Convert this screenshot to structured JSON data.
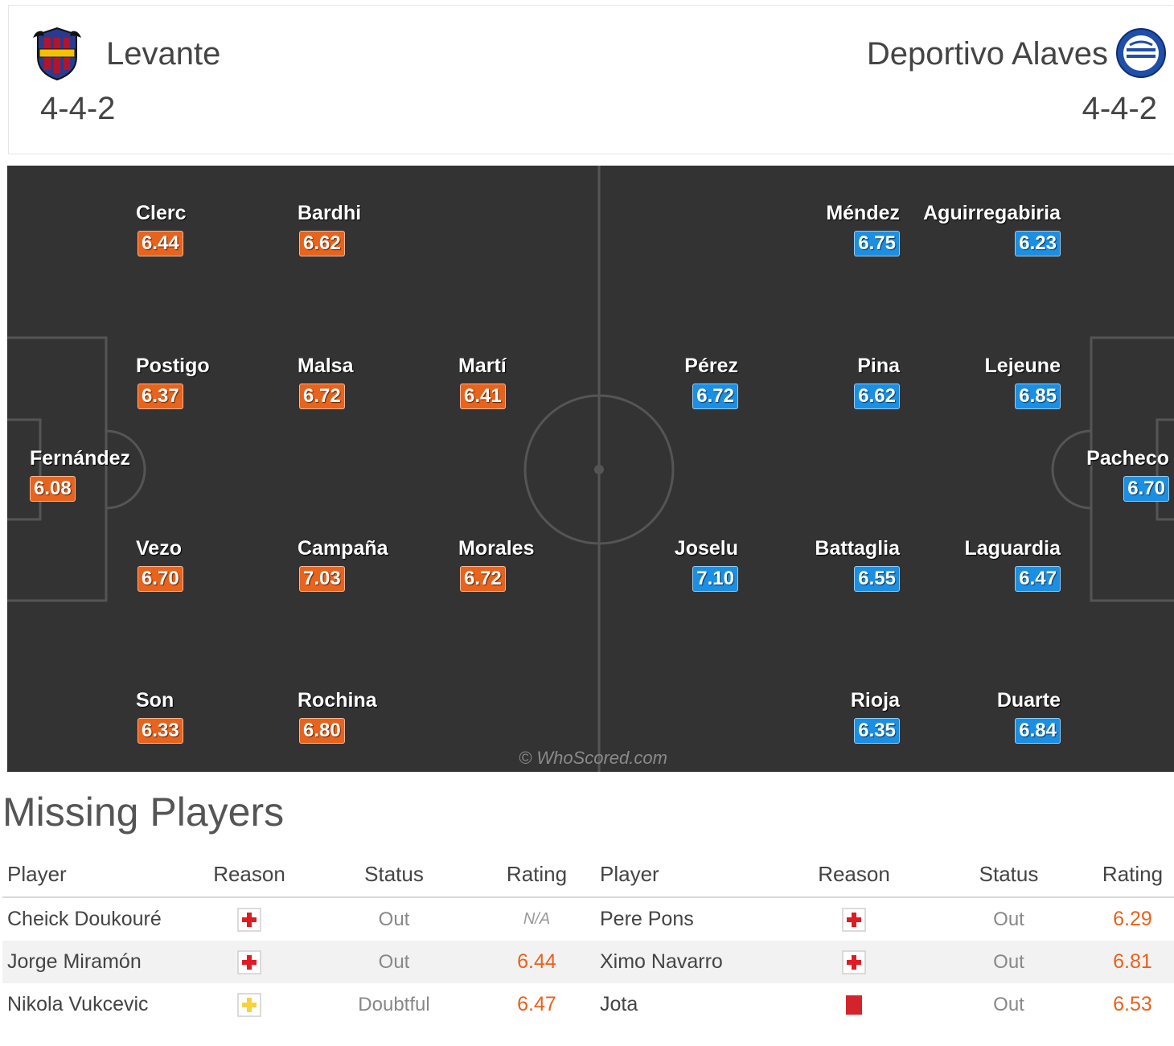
{
  "home": {
    "name": "Levante",
    "formation": "4-4-2",
    "crest_icon": "levante-crest-icon",
    "color": "#e8631c",
    "players": [
      {
        "name": "Fernández",
        "rating": "6.08"
      },
      {
        "name": "Clerc",
        "rating": "6.44"
      },
      {
        "name": "Postigo",
        "rating": "6.37"
      },
      {
        "name": "Vezo",
        "rating": "6.70"
      },
      {
        "name": "Son",
        "rating": "6.33"
      },
      {
        "name": "Bardhi",
        "rating": "6.62"
      },
      {
        "name": "Malsa",
        "rating": "6.72"
      },
      {
        "name": "Campaña",
        "rating": "7.03"
      },
      {
        "name": "Rochina",
        "rating": "6.80"
      },
      {
        "name": "Martí",
        "rating": "6.41"
      },
      {
        "name": "Morales",
        "rating": "6.72"
      }
    ]
  },
  "away": {
    "name": "Deportivo Alaves",
    "formation": "4-4-2",
    "crest_icon": "alaves-crest-icon",
    "color": "#1a8fe3",
    "players": [
      {
        "name": "Pacheco",
        "rating": "6.70"
      },
      {
        "name": "Aguirregabiria",
        "rating": "6.23"
      },
      {
        "name": "Lejeune",
        "rating": "6.85"
      },
      {
        "name": "Laguardia",
        "rating": "6.47"
      },
      {
        "name": "Duarte",
        "rating": "6.84"
      },
      {
        "name": "Méndez",
        "rating": "6.75"
      },
      {
        "name": "Pina",
        "rating": "6.62"
      },
      {
        "name": "Battaglia",
        "rating": "6.55"
      },
      {
        "name": "Rioja",
        "rating": "6.35"
      },
      {
        "name": "Pérez",
        "rating": "6.72"
      },
      {
        "name": "Joselu",
        "rating": "7.10"
      }
    ]
  },
  "watermark": "© WhoScored.com",
  "missing": {
    "title": "Missing Players",
    "headers": [
      "Player",
      "Reason",
      "Status",
      "Rating",
      "Player",
      "Reason",
      "Status",
      "Rating"
    ],
    "home_rows": [
      {
        "player": "Cheick Doukouré",
        "reason": "injury",
        "status": "Out",
        "rating": "N/A"
      },
      {
        "player": "Jorge Miramón",
        "reason": "injury",
        "status": "Out",
        "rating": "6.44"
      },
      {
        "player": "Nikola Vukcevic",
        "reason": "doubtful",
        "status": "Doubtful",
        "rating": "6.47"
      }
    ],
    "away_rows": [
      {
        "player": "Pere Pons",
        "reason": "injury",
        "status": "Out",
        "rating": "6.29"
      },
      {
        "player": "Ximo Navarro",
        "reason": "injury",
        "status": "Out",
        "rating": "6.81"
      },
      {
        "player": "Jota",
        "reason": "red-card",
        "status": "Out",
        "rating": "6.53"
      }
    ],
    "reason_icons": {
      "injury": "injury-cross-icon",
      "doubtful": "doubtful-cross-icon",
      "red-card": "red-card-icon"
    }
  }
}
